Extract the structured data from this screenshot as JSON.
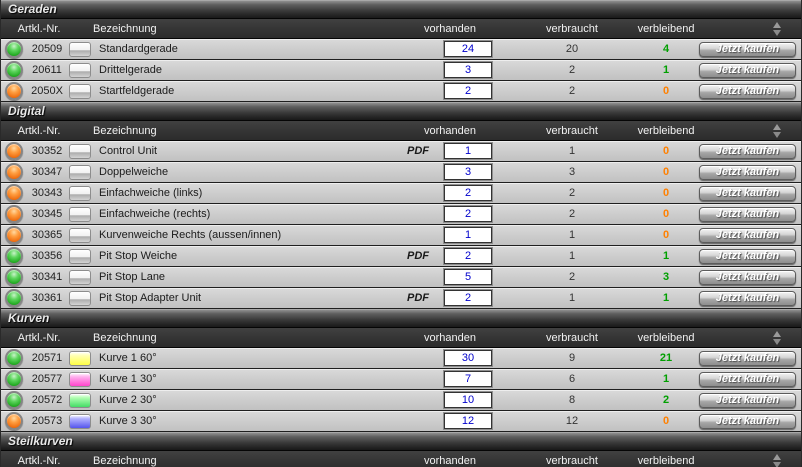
{
  "labels": {
    "buy": "Jetzt kaufen",
    "pdf": "PDF"
  },
  "columns": {
    "art": "Artkl.-Nr.",
    "name": "Bezeichnung",
    "have": "vorhanden",
    "used": "verbraucht",
    "left": "verbleibend"
  },
  "colors": {
    "led_green": "#23ab23",
    "led_orange": "#ef6f12",
    "remaining_positive": "#00a000",
    "remaining_zero": "#ff8000",
    "input_text": "#0000cc",
    "swatch_gray": "#d4d4d4",
    "swatch_yellow": "#ffff44",
    "swatch_magenta": "#ff44cc",
    "swatch_green": "#44dd66",
    "swatch_blue": "#5555ee"
  },
  "sections": [
    {
      "title": "Geraden",
      "rows": [
        {
          "led": "green",
          "art": "20509",
          "swatch": "gray",
          "name": "Standardgerade",
          "pdf": false,
          "vorhanden": "24",
          "verbraucht": "20",
          "verbleibend": "4",
          "state": "positive"
        },
        {
          "led": "green",
          "art": "20611",
          "swatch": "gray",
          "name": "Drittelgerade",
          "pdf": false,
          "vorhanden": "3",
          "verbraucht": "2",
          "verbleibend": "1",
          "state": "positive"
        },
        {
          "led": "orange",
          "art": "2050X",
          "swatch": "gray",
          "name": "Startfeldgerade",
          "pdf": false,
          "vorhanden": "2",
          "verbraucht": "2",
          "verbleibend": "0",
          "state": "zero"
        }
      ]
    },
    {
      "title": "Digital",
      "rows": [
        {
          "led": "orange",
          "art": "30352",
          "swatch": "gray",
          "name": "Control Unit",
          "pdf": true,
          "vorhanden": "1",
          "verbraucht": "1",
          "verbleibend": "0",
          "state": "zero"
        },
        {
          "led": "orange",
          "art": "30347",
          "swatch": "gray",
          "name": "Doppelweiche",
          "pdf": false,
          "vorhanden": "3",
          "verbraucht": "3",
          "verbleibend": "0",
          "state": "zero"
        },
        {
          "led": "orange",
          "art": "30343",
          "swatch": "gray",
          "name": "Einfachweiche (links)",
          "pdf": false,
          "vorhanden": "2",
          "verbraucht": "2",
          "verbleibend": "0",
          "state": "zero"
        },
        {
          "led": "orange",
          "art": "30345",
          "swatch": "gray",
          "name": "Einfachweiche (rechts)",
          "pdf": false,
          "vorhanden": "2",
          "verbraucht": "2",
          "verbleibend": "0",
          "state": "zero"
        },
        {
          "led": "orange",
          "art": "30365",
          "swatch": "gray",
          "name": "Kurvenweiche Rechts (aussen/innen)",
          "pdf": false,
          "vorhanden": "1",
          "verbraucht": "1",
          "verbleibend": "0",
          "state": "zero"
        },
        {
          "led": "green",
          "art": "30356",
          "swatch": "gray",
          "name": "Pit Stop Weiche",
          "pdf": true,
          "vorhanden": "2",
          "verbraucht": "1",
          "verbleibend": "1",
          "state": "positive"
        },
        {
          "led": "green",
          "art": "30341",
          "swatch": "gray",
          "name": "Pit Stop Lane",
          "pdf": false,
          "vorhanden": "5",
          "verbraucht": "2",
          "verbleibend": "3",
          "state": "positive"
        },
        {
          "led": "green",
          "art": "30361",
          "swatch": "gray",
          "name": "Pit Stop Adapter Unit",
          "pdf": true,
          "vorhanden": "2",
          "verbraucht": "1",
          "verbleibend": "1",
          "state": "positive"
        }
      ]
    },
    {
      "title": "Kurven",
      "rows": [
        {
          "led": "green",
          "art": "20571",
          "swatch": "yellow",
          "name": "Kurve 1 60°",
          "pdf": false,
          "vorhanden": "30",
          "verbraucht": "9",
          "verbleibend": "21",
          "state": "positive"
        },
        {
          "led": "green",
          "art": "20577",
          "swatch": "magenta",
          "name": "Kurve 1 30°",
          "pdf": false,
          "vorhanden": "7",
          "verbraucht": "6",
          "verbleibend": "1",
          "state": "positive"
        },
        {
          "led": "green",
          "art": "20572",
          "swatch": "green",
          "name": "Kurve 2 30°",
          "pdf": false,
          "vorhanden": "10",
          "verbraucht": "8",
          "verbleibend": "2",
          "state": "positive"
        },
        {
          "led": "orange",
          "art": "20573",
          "swatch": "blue",
          "name": "Kurve 3 30°",
          "pdf": false,
          "vorhanden": "12",
          "verbraucht": "12",
          "verbleibend": "0",
          "state": "zero"
        }
      ]
    },
    {
      "title": "Steilkurven",
      "rows": []
    }
  ]
}
